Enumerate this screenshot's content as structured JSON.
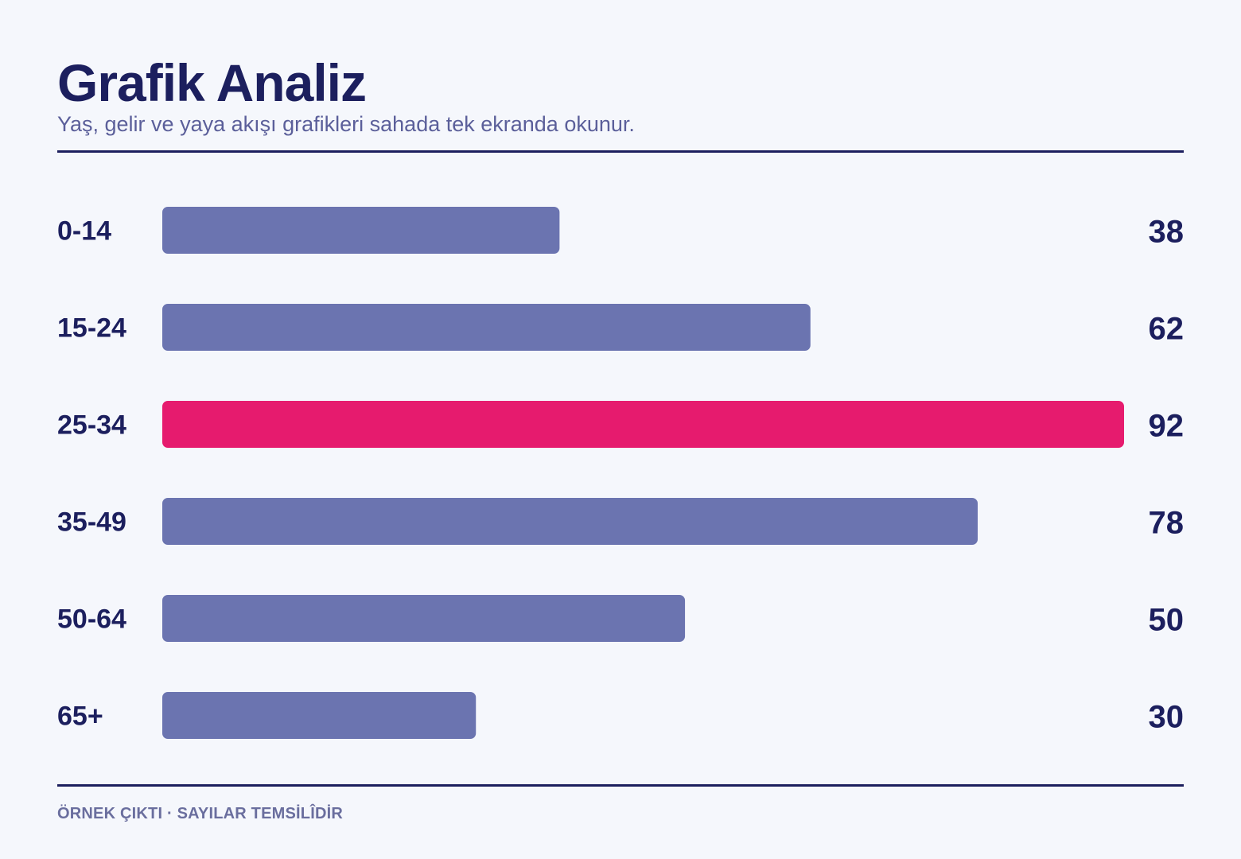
{
  "header": {
    "title": "Grafik Analiz",
    "subtitle": "Yaş, gelir ve yaya akışı grafikleri sahada tek ekranda okunur."
  },
  "footer": {
    "note": "ÖRNEK ÇIKTI · SAYILAR TEMSİLÎDİR"
  },
  "colors": {
    "bar": "#6b74b0",
    "highlight": "#e61b6e",
    "text": "#1c1f5e"
  },
  "chart_data": {
    "type": "bar",
    "orientation": "horizontal",
    "categories": [
      "0-14",
      "15-24",
      "25-34",
      "35-49",
      "50-64",
      "65+"
    ],
    "values": [
      38,
      62,
      92,
      78,
      50,
      30
    ],
    "highlight": "25-34",
    "xlim": [
      0,
      92
    ],
    "grid": false,
    "legend": "none"
  }
}
